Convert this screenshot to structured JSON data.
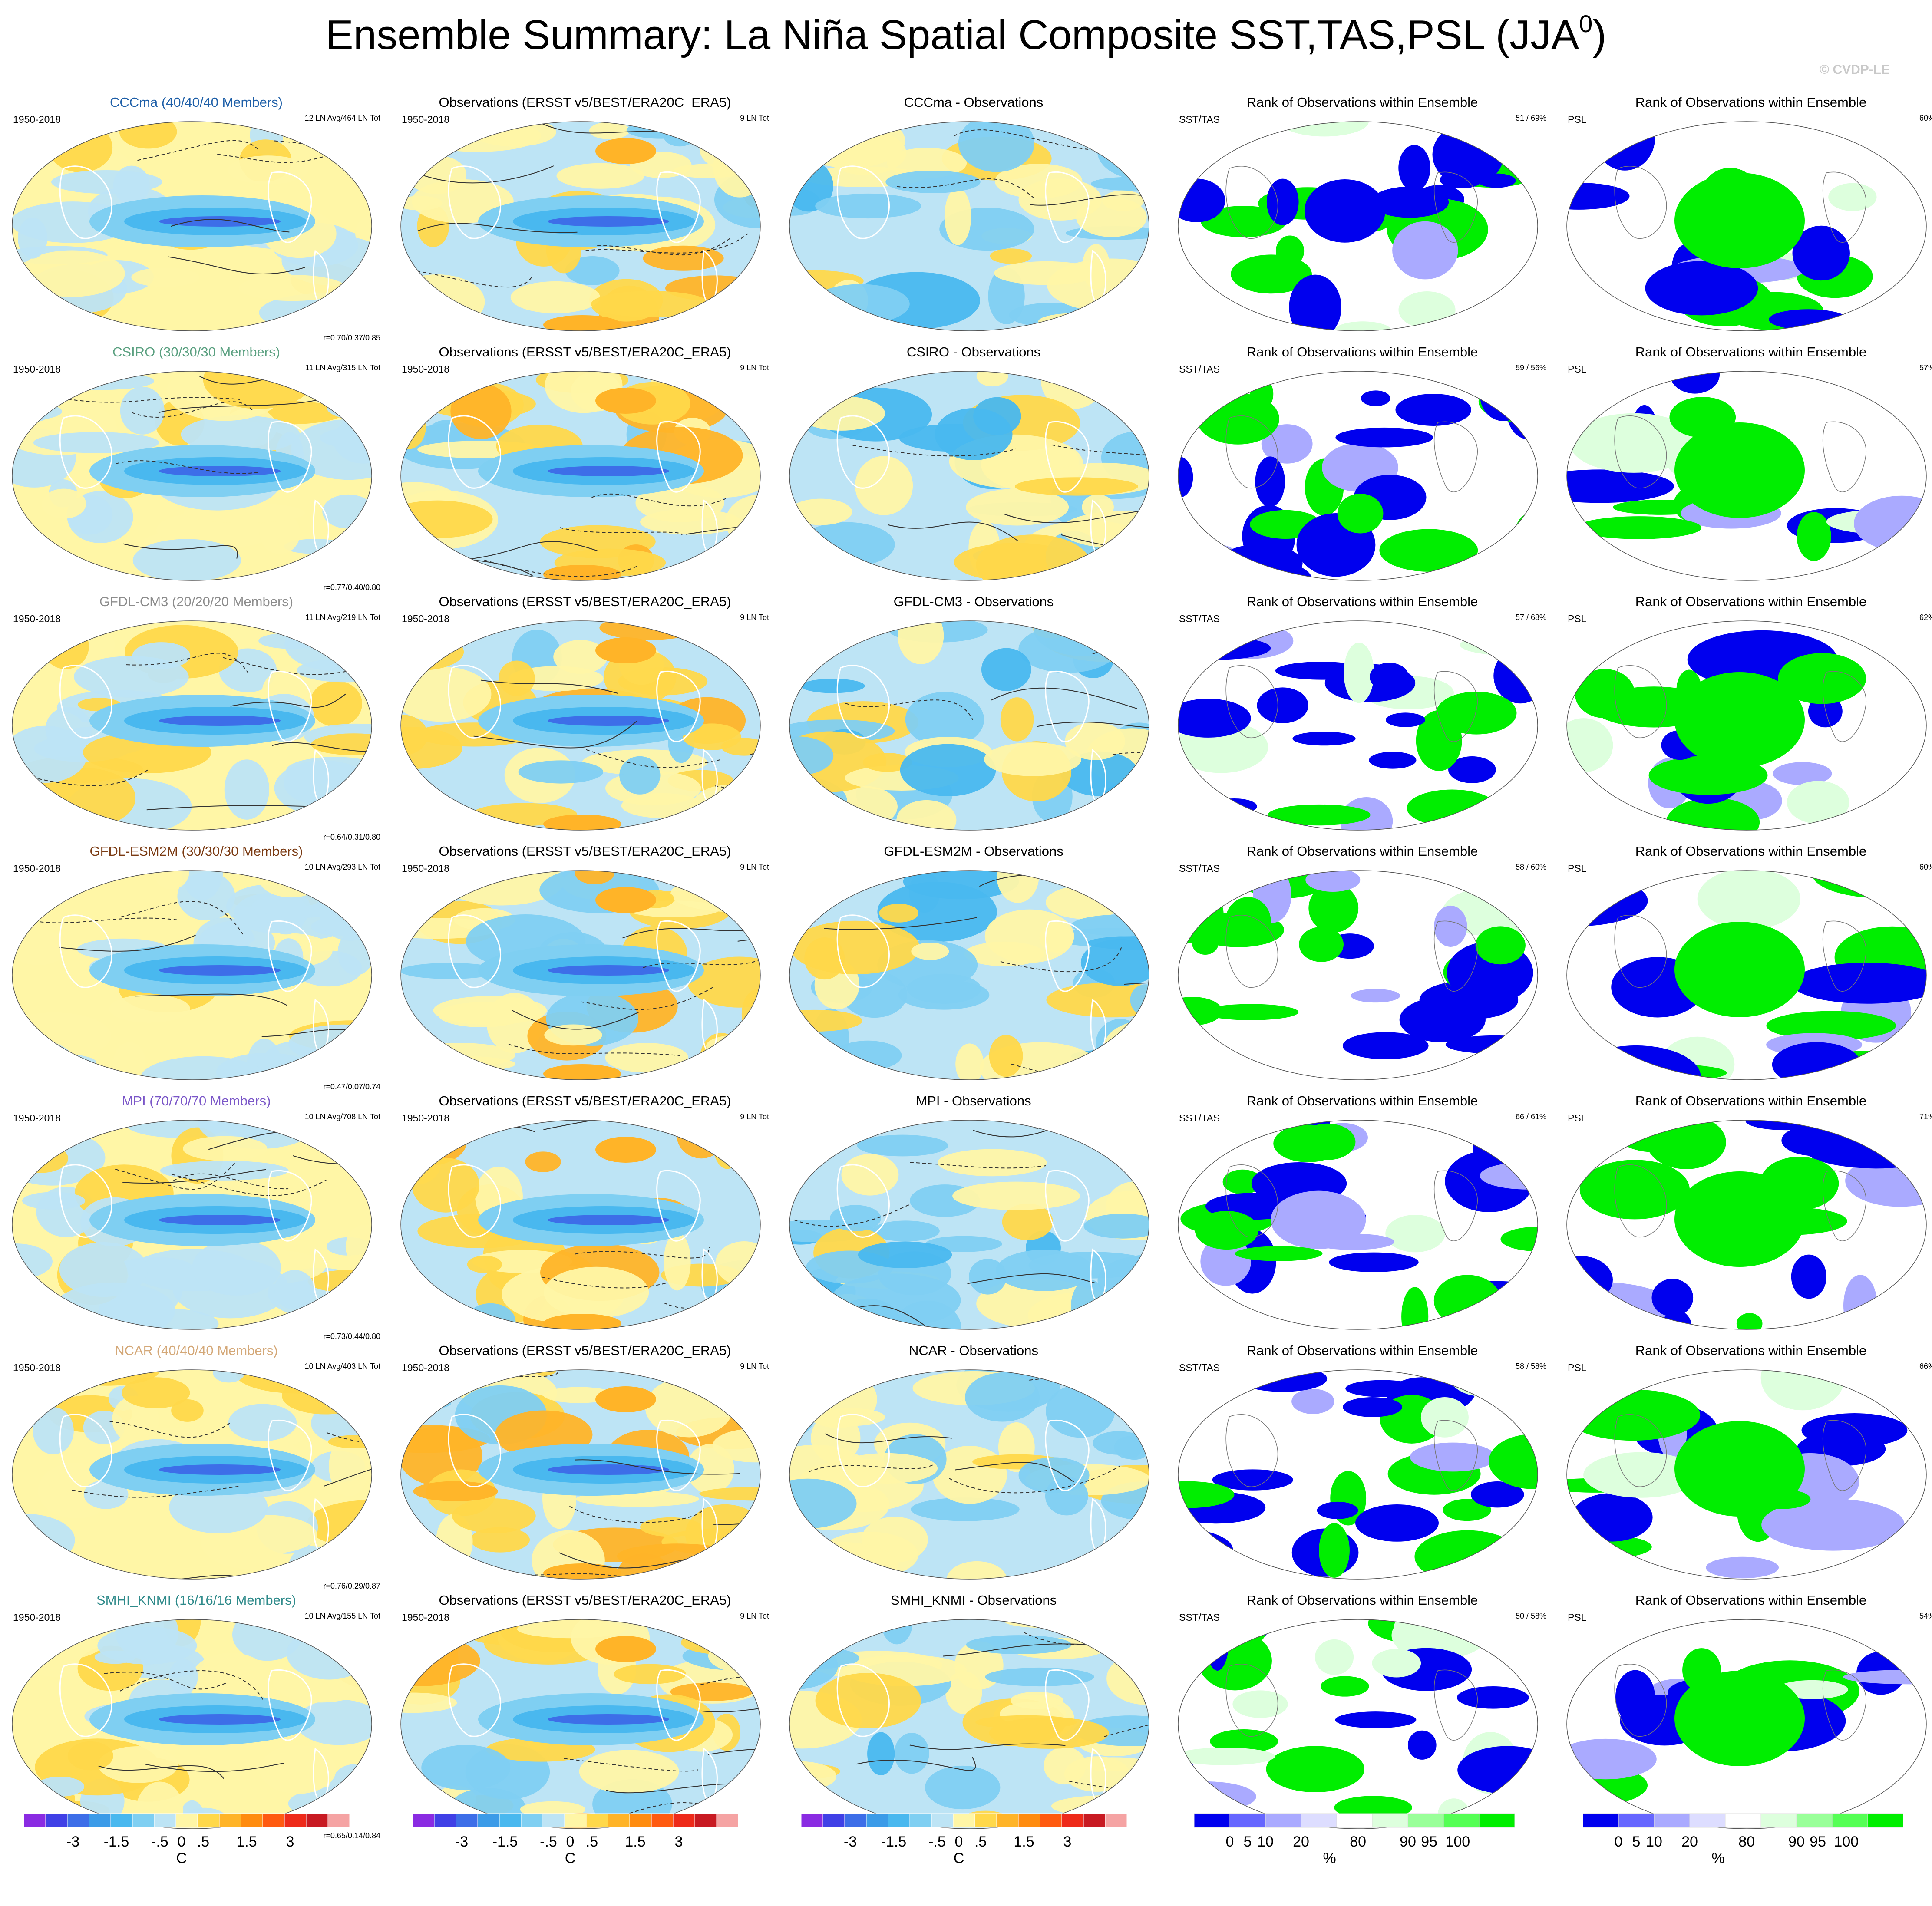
{
  "title": "Ensemble Summary: La Niña Spatial Composite SST,TAS,PSL (JJA",
  "title_superscript": "0",
  "title_close": ")",
  "copyright": "© CVDP-LE",
  "chart_data": {
    "type": "heatmap",
    "columns": [
      "Ensemble mean",
      "Observations",
      "Ensemble - Observations",
      "Rank SST/TAS",
      "Rank PSL"
    ],
    "rows": [
      {
        "model": "CCCma",
        "color": "#1e5fa8",
        "ens_title": "CCCma (40/40/40 Members)",
        "period": "1950-2018",
        "ens_counts": "12 LN Avg/464 LN Tot",
        "corr": "r=0.70/0.37/0.85",
        "diff_title": "CCCma - Observations",
        "rank_sst_pct": "51 /  69%",
        "rank_psl_pct": "60%"
      },
      {
        "model": "CSIRO",
        "color": "#5aa080",
        "ens_title": "CSIRO (30/30/30 Members)",
        "period": "1950-2018",
        "ens_counts": "11 LN Avg/315 LN Tot",
        "corr": "r=0.77/0.40/0.80",
        "diff_title": "CSIRO - Observations",
        "rank_sst_pct": "59 /  56%",
        "rank_psl_pct": "57%"
      },
      {
        "model": "GFDL-CM3",
        "color": "#8c8c8c",
        "ens_title": "GFDL-CM3 (20/20/20 Members)",
        "period": "1950-2018",
        "ens_counts": "11 LN Avg/219 LN Tot",
        "corr": "r=0.64/0.31/0.80",
        "diff_title": "GFDL-CM3 - Observations",
        "rank_sst_pct": "57 /  68%",
        "rank_psl_pct": "62%"
      },
      {
        "model": "GFDL-ESM2M",
        "color": "#7a3a12",
        "ens_title": "GFDL-ESM2M (30/30/30 Members)",
        "period": "1950-2018",
        "ens_counts": "10 LN Avg/293 LN Tot",
        "corr": "r=0.47/0.07/0.74",
        "diff_title": "GFDL-ESM2M - Observations",
        "rank_sst_pct": "58 /  60%",
        "rank_psl_pct": "60%"
      },
      {
        "model": "MPI",
        "color": "#7a56c8",
        "ens_title": "MPI (70/70/70 Members)",
        "period": "1950-2018",
        "ens_counts": "10 LN Avg/708 LN Tot",
        "corr": "r=0.73/0.44/0.80",
        "diff_title": "MPI - Observations",
        "rank_sst_pct": "66 /  61%",
        "rank_psl_pct": "71%"
      },
      {
        "model": "NCAR",
        "color": "#d4a878",
        "ens_title": "NCAR (40/40/40 Members)",
        "period": "1950-2018",
        "ens_counts": "10 LN Avg/403 LN Tot",
        "corr": "r=0.76/0.29/0.87",
        "diff_title": "NCAR - Observations",
        "rank_sst_pct": "58 /  58%",
        "rank_psl_pct": "66%"
      },
      {
        "model": "SMHI_KNMI",
        "color": "#2e8a8a",
        "ens_title": "SMHI_KNMI (16/16/16 Members)",
        "period": "1950-2018",
        "ens_counts": "10 LN Avg/155 LN Tot",
        "corr": "r=0.65/0.14/0.84",
        "diff_title": "SMHI_KNMI - Observations",
        "rank_sst_pct": "50 /  58%",
        "rank_psl_pct": "54%"
      }
    ],
    "obs_title": "Observations (ERSST v5/BEST/ERA20C_ERA5)",
    "obs_period": "1950-2018",
    "obs_counts": "9 LN Tot",
    "rank_title": "Rank of Observations within Ensemble",
    "rank_label_sst": "SST/TAS",
    "rank_label_psl": "PSL",
    "temp_colorbar": {
      "colors": [
        "#8a2be2",
        "#4040e6",
        "#3d6ee8",
        "#3b9be8",
        "#49b8ef",
        "#7fcff2",
        "#bde4f5",
        "#fff6a6",
        "#ffd84a",
        "#ffb428",
        "#ff8c10",
        "#ff5a10",
        "#ee2a1a",
        "#c81a22",
        "#f5a3a3"
      ],
      "labels": [
        "-3",
        "-1.5",
        "-.5",
        "0",
        ".5",
        "1.5",
        "3"
      ],
      "unit": "C"
    },
    "rank_colorbar": {
      "colors": [
        "#0000ee",
        "#6666ff",
        "#aaaaff",
        "#ddddff",
        "#ffffff",
        "#ddffdd",
        "#99ff99",
        "#55ff55",
        "#00ee00"
      ],
      "labels": [
        "0",
        "5",
        "10",
        "20",
        "80",
        "90",
        "95",
        "100"
      ],
      "unit": "%"
    }
  }
}
